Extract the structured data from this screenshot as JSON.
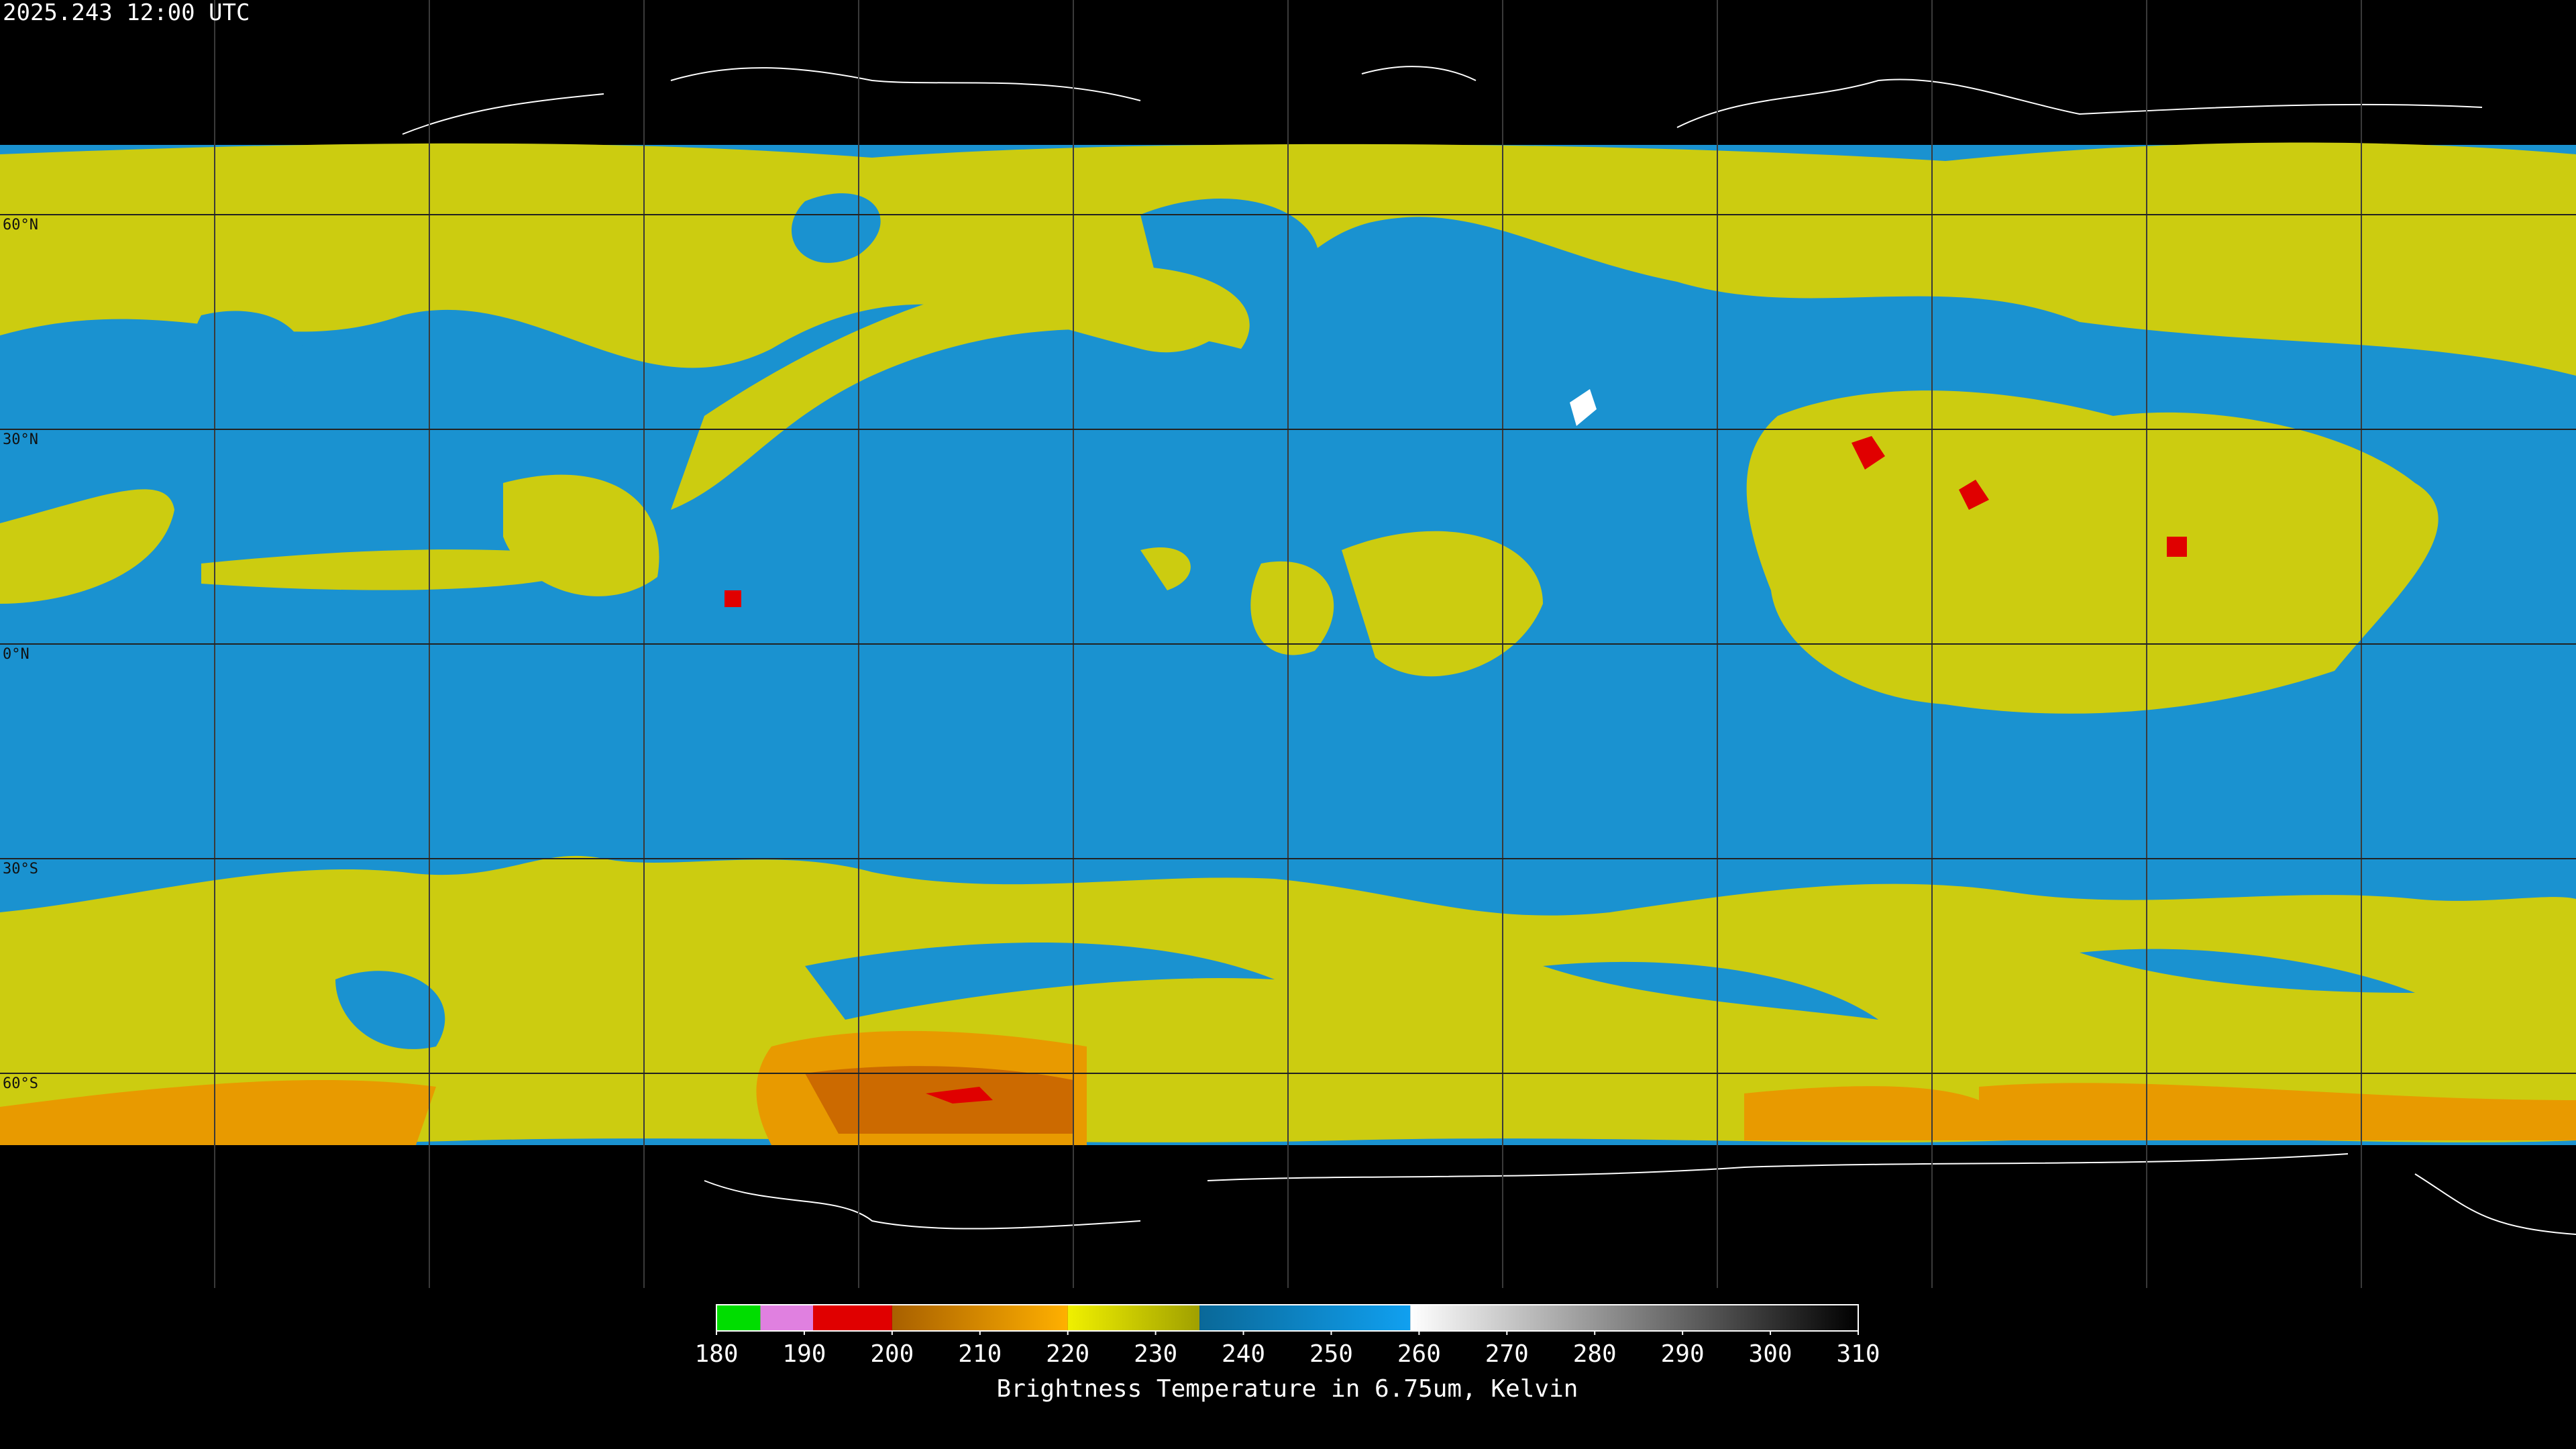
{
  "header": {
    "timestamp": "2025.243 12:00 UTC"
  },
  "map": {
    "lat_range": [
      90,
      -90
    ],
    "lon_range": [
      -180,
      180
    ],
    "parallels": [
      {
        "value": 60,
        "label": "60°N"
      },
      {
        "value": 30,
        "label": "30°N"
      },
      {
        "value": 0,
        "label": "0°N"
      },
      {
        "value": -30,
        "label": "30°S"
      },
      {
        "value": -60,
        "label": "60°S"
      }
    ],
    "meridians": [
      -150,
      -120,
      -90,
      -60,
      -30,
      0,
      30,
      60,
      90,
      120,
      150
    ]
  },
  "colorbar": {
    "range": [
      180,
      310
    ],
    "ticks": [
      180,
      190,
      200,
      210,
      220,
      230,
      240,
      250,
      260,
      270,
      280,
      290,
      300,
      310
    ],
    "title": "Brightness Temperature in 6.75um, Kelvin",
    "segments": [
      {
        "from": 180,
        "to": 185,
        "colors": [
          "#00dd00",
          "#00dd00"
        ]
      },
      {
        "from": 185,
        "to": 191,
        "colors": [
          "#e080e0",
          "#e080e0"
        ]
      },
      {
        "from": 191,
        "to": 200,
        "colors": [
          "#e00000",
          "#e00000"
        ]
      },
      {
        "from": 200,
        "to": 220,
        "colors": [
          "#a86000",
          "#ffb000"
        ]
      },
      {
        "from": 220,
        "to": 235,
        "colors": [
          "#f0f000",
          "#a0a000"
        ]
      },
      {
        "from": 235,
        "to": 259,
        "colors": [
          "#0a6898",
          "#10a0f0"
        ]
      },
      {
        "from": 259,
        "to": 310,
        "colors": [
          "#ffffff",
          "#000000"
        ]
      }
    ]
  }
}
